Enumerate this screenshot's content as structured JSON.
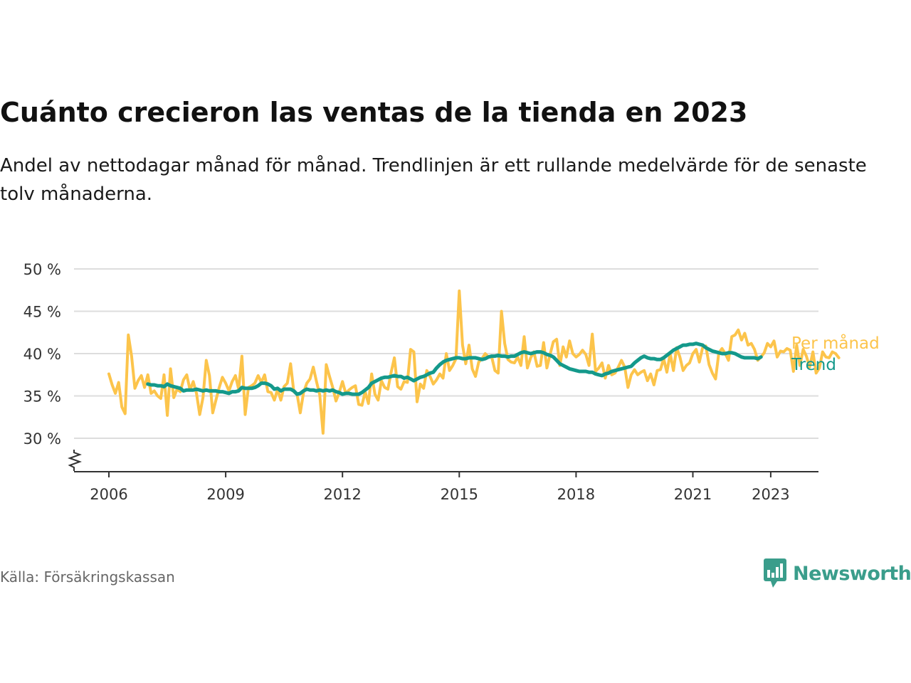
{
  "title": "Cuánto crecieron las ventas de la tienda en 2023",
  "title_actual": "Cuánto crecieron las ventas de la tienda en 2023",
  "subtitle": "Andel av nettodagar månad för månad. Trendlinjen är ett rullande medelvärde för de senaste tolv månaderna.",
  "source": "Källa: Försäkringskassan",
  "brand": "Newsworthy",
  "icons": {
    "brand_logo": "newsworthy-logo-icon",
    "axis_break": "axis-break-icon"
  },
  "colors": {
    "monthly": "#fcc44b",
    "trend": "#14998b",
    "grid": "#dddddd",
    "axis": "#333333"
  },
  "chart_data": {
    "type": "line",
    "x_unit": "month",
    "start": "2006-01",
    "ylim": [
      25,
      50
    ],
    "yticks": [
      30,
      35,
      40,
      45,
      50
    ],
    "ytick_labels": [
      "30 %",
      "35 %",
      "40 %",
      "45 %",
      "50 %"
    ],
    "xticks": [
      2006,
      2009,
      2012,
      2015,
      2018,
      2021,
      2023
    ],
    "xtick_labels": [
      "2006",
      "2009",
      "2012",
      "2015",
      "2018",
      "2021",
      "2023"
    ],
    "grid": true,
    "legend": "end-of-line labels",
    "series": [
      {
        "name": "Per månad",
        "values": [
          37.6,
          36.3,
          35.3,
          36.6,
          33.7,
          32.9,
          42.2,
          39.7,
          35.9,
          36.8,
          37.4,
          36.0,
          37.5,
          35.3,
          35.6,
          35.0,
          34.7,
          37.5,
          32.7,
          38.2,
          34.8,
          35.8,
          35.5,
          36.9,
          37.5,
          35.7,
          36.7,
          35.3,
          32.8,
          34.8,
          39.2,
          37.4,
          33.0,
          34.5,
          36.0,
          37.2,
          36.5,
          35.6,
          36.7,
          37.4,
          35.8,
          39.7,
          32.8,
          36.0,
          36.2,
          36.5,
          37.4,
          36.6,
          37.5,
          35.5,
          35.4,
          34.5,
          35.8,
          34.5,
          36.1,
          36.5,
          38.8,
          35.5,
          35.2,
          33.0,
          35.4,
          36.5,
          37.0,
          38.4,
          36.7,
          35.1,
          30.6,
          38.7,
          37.3,
          36.0,
          34.4,
          35.4,
          36.7,
          35.3,
          35.7,
          36.0,
          36.2,
          34.0,
          33.9,
          35.5,
          34.1,
          37.6,
          35.2,
          34.5,
          36.8,
          36.0,
          35.8,
          37.8,
          39.5,
          36.1,
          35.8,
          36.7,
          36.6,
          40.5,
          40.2,
          34.3,
          36.4,
          35.9,
          38.0,
          37.3,
          36.4,
          36.9,
          37.6,
          37.1,
          40.0,
          38.0,
          38.6,
          39.4,
          47.4,
          41.0,
          38.8,
          41.0,
          38.2,
          37.3,
          39.0,
          39.4,
          40.0,
          39.6,
          39.6,
          38.0,
          37.7,
          45.0,
          41.2,
          39.3,
          39.0,
          38.9,
          39.6,
          38.6,
          42.0,
          38.3,
          39.5,
          40.2,
          38.5,
          38.6,
          41.3,
          38.3,
          39.9,
          41.4,
          41.7,
          38.6,
          40.8,
          39.6,
          41.5,
          40.0,
          39.6,
          39.9,
          40.4,
          39.9,
          38.6,
          42.3,
          37.9,
          38.3,
          38.9,
          37.1,
          38.6,
          37.5,
          37.7,
          38.4,
          39.2,
          38.4,
          36.0,
          37.5,
          38.1,
          37.5,
          37.8,
          38.0,
          36.8,
          37.6,
          36.3,
          38.0,
          38.1,
          39.4,
          37.8,
          40.0,
          38.0,
          40.7,
          39.6,
          38.0,
          38.6,
          38.9,
          40.0,
          40.5,
          39.0,
          40.7,
          40.9,
          38.7,
          37.7,
          37.0,
          40.1,
          40.6,
          40.0,
          39.2,
          42.0,
          42.2,
          42.8,
          41.6,
          42.4,
          41.0,
          41.2,
          40.5,
          39.2,
          39.6,
          40.1,
          41.2,
          40.8,
          41.5,
          39.6,
          40.3,
          40.2,
          40.6,
          40.4,
          37.9,
          41.0,
          38.6,
          40.5,
          39.7,
          38.4,
          40.2,
          37.7,
          38.3,
          40.2,
          39.6,
          39.5,
          40.2,
          40.0,
          39.5
        ],
        "color": "#fcc44b"
      },
      {
        "name": "Trend",
        "start": "2007-01",
        "values": [
          36.4,
          36.3,
          36.3,
          36.2,
          36.2,
          36.1,
          36.4,
          36.2,
          36.1,
          36.0,
          35.9,
          35.6,
          35.7,
          35.7,
          35.7,
          35.8,
          35.7,
          35.6,
          35.7,
          35.6,
          35.6,
          35.6,
          35.5,
          35.5,
          35.4,
          35.3,
          35.5,
          35.5,
          35.6,
          36.0,
          35.9,
          35.9,
          35.9,
          36.0,
          36.2,
          36.5,
          36.5,
          36.4,
          36.2,
          35.8,
          35.9,
          35.6,
          35.8,
          35.8,
          35.8,
          35.6,
          35.2,
          35.3,
          35.6,
          35.8,
          35.7,
          35.7,
          35.6,
          35.7,
          35.6,
          35.7,
          35.6,
          35.7,
          35.5,
          35.4,
          35.2,
          35.3,
          35.3,
          35.2,
          35.2,
          35.2,
          35.4,
          35.7,
          36.0,
          36.5,
          36.7,
          36.9,
          37.1,
          37.2,
          37.2,
          37.3,
          37.4,
          37.3,
          37.3,
          37.1,
          37.2,
          37.0,
          36.8,
          37.0,
          37.2,
          37.3,
          37.5,
          37.7,
          37.8,
          38.3,
          38.7,
          39.0,
          39.2,
          39.3,
          39.4,
          39.5,
          39.5,
          39.4,
          39.4,
          39.5,
          39.5,
          39.5,
          39.4,
          39.3,
          39.4,
          39.6,
          39.7,
          39.7,
          39.8,
          39.7,
          39.7,
          39.6,
          39.7,
          39.7,
          39.9,
          40.1,
          40.2,
          40.1,
          40.0,
          40.1,
          40.2,
          40.2,
          40.1,
          39.9,
          39.8,
          39.6,
          39.2,
          38.8,
          38.6,
          38.4,
          38.2,
          38.1,
          38.0,
          37.9,
          37.9,
          37.9,
          37.8,
          37.8,
          37.6,
          37.5,
          37.4,
          37.6,
          37.7,
          37.9,
          38.0,
          38.1,
          38.2,
          38.3,
          38.4,
          38.5,
          38.9,
          39.2,
          39.5,
          39.7,
          39.5,
          39.4,
          39.4,
          39.3,
          39.3,
          39.5,
          39.8,
          40.1,
          40.4,
          40.6,
          40.8,
          41.0,
          41.0,
          41.1,
          41.1,
          41.2,
          41.1,
          41.0,
          40.7,
          40.5,
          40.3,
          40.2,
          40.1,
          40.0,
          40.0,
          40.1,
          40.1,
          40.0,
          39.8,
          39.6,
          39.5,
          39.5,
          39.5,
          39.5,
          39.4,
          39.6
        ],
        "color": "#14998b"
      }
    ]
  }
}
